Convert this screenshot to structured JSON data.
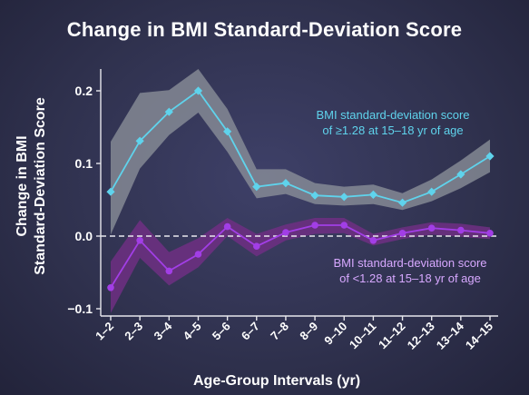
{
  "chart_data": {
    "type": "line",
    "title": "Change in BMI Standard-Deviation Score",
    "xlabel": "Age-Group Intervals (yr)",
    "ylabel_lines": [
      "Change in BMI",
      "Standard-Deviation Score"
    ],
    "categories": [
      "1–2",
      "2–3",
      "3–4",
      "4–5",
      "5–6",
      "6–7",
      "7–8",
      "8–9",
      "9–10",
      "10–11",
      "11–12",
      "12–13",
      "13–14",
      "14–15"
    ],
    "ylim": [
      -0.11,
      0.23
    ],
    "yticks": [
      {
        "value": 0.2,
        "label": "0.2"
      },
      {
        "value": 0.1,
        "label": "0.1"
      },
      {
        "value": 0.0,
        "label": "0.0"
      },
      {
        "value": -0.1,
        "label": "−0.1"
      }
    ],
    "reference_line": {
      "value": 0.0,
      "style": "dashed"
    },
    "grid": false,
    "series": [
      {
        "name": "BMI standard-deviation score of ≥1.28 at 15–18 yr of age",
        "label_lines": [
          "BMI standard-deviation score",
          "of ≥1.28 at 15–18 yr of age"
        ],
        "color": "#5fd3ec",
        "marker": "diamond",
        "band_color": "#8f949c",
        "values": [
          0.061,
          0.131,
          0.171,
          0.2,
          0.144,
          0.068,
          0.073,
          0.056,
          0.054,
          0.057,
          0.046,
          0.061,
          0.085,
          0.11
        ],
        "lower": [
          0.002,
          0.093,
          0.139,
          0.17,
          0.116,
          0.052,
          0.058,
          0.044,
          0.042,
          0.044,
          0.036,
          0.048,
          0.066,
          0.088
        ],
        "upper": [
          0.13,
          0.197,
          0.201,
          0.23,
          0.175,
          0.092,
          0.092,
          0.073,
          0.068,
          0.071,
          0.059,
          0.078,
          0.104,
          0.133
        ]
      },
      {
        "name": "BMI standard-deviation score of <1.28 at 15–18 yr of age",
        "label_lines": [
          "BMI standard-deviation score",
          "of <1.28 at 15–18 yr of age"
        ],
        "color": "#a23ee6",
        "label_color": "#d7a8ff",
        "marker": "circle",
        "band_color": "#6e2f82",
        "values": [
          -0.071,
          -0.006,
          -0.048,
          -0.025,
          0.013,
          -0.014,
          0.005,
          0.015,
          0.015,
          -0.006,
          0.004,
          0.011,
          0.008,
          0.004
        ],
        "lower": [
          -0.106,
          -0.03,
          -0.068,
          -0.043,
          0.0,
          -0.028,
          -0.006,
          0.003,
          0.004,
          -0.013,
          -0.004,
          0.002,
          -0.001,
          -0.004
        ],
        "upper": [
          -0.035,
          0.022,
          -0.022,
          -0.003,
          0.025,
          0.003,
          0.016,
          0.025,
          0.025,
          0.003,
          0.012,
          0.019,
          0.017,
          0.012
        ]
      }
    ]
  }
}
